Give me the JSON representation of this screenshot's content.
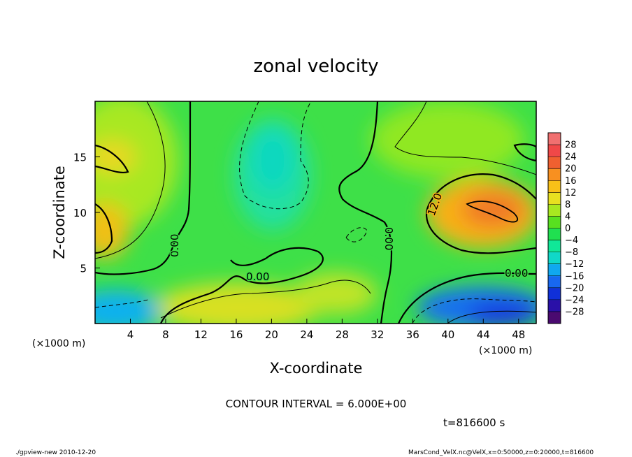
{
  "chart_data": {
    "type": "heatmap",
    "title": "zonal velocity",
    "xlabel": "X-coordinate",
    "ylabel": "Z-coordinate",
    "x_unit": "(×1000 m)",
    "x_ticks": [
      4,
      8,
      12,
      16,
      20,
      24,
      28,
      32,
      36,
      40,
      44,
      48
    ],
    "y_ticks": [
      5,
      10,
      15
    ],
    "xlim": [
      0,
      50
    ],
    "ylim": [
      0,
      20
    ],
    "colorbar": {
      "labels": [
        "28",
        "24",
        "20",
        "16",
        "12",
        "8",
        "4",
        "0",
        "−4",
        "−8",
        "−12",
        "−16",
        "−20",
        "−24",
        "−28"
      ],
      "range": [
        -30,
        30
      ],
      "colors": [
        "#4a0a70",
        "#2a10a8",
        "#1030d8",
        "#1868f0",
        "#10a8f0",
        "#10d8c8",
        "#10e898",
        "#20e050",
        "#58e020",
        "#a8e820",
        "#e8e020",
        "#f8c018",
        "#f89020",
        "#f06030",
        "#f04848",
        "#f07070"
      ]
    },
    "contour_labels": [
      "0.00",
      "0.00",
      "0.00",
      "12.0",
      "0.00"
    ],
    "contour_interval": "CONTOUR INTERVAL = 6.000E+00",
    "time": "t=816600  s"
  },
  "footer": {
    "left": "./gpview-new  2010-12-20",
    "right": "MarsCond_VelX.nc@VelX,x=0:50000,z=0:20000,t=816600"
  }
}
